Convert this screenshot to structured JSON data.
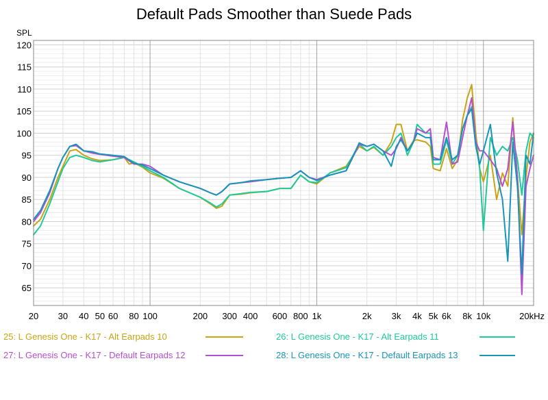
{
  "chart_data": {
    "type": "line",
    "title": "Default Pads Smoother than Suede Pads",
    "ylabel": "SPL",
    "x_scale": "log",
    "xlim": [
      20,
      20000
    ],
    "ylim": [
      61,
      121
    ],
    "y_ticks": [
      65,
      70,
      75,
      80,
      85,
      90,
      95,
      100,
      105,
      110,
      115,
      120
    ],
    "x_ticks": [
      {
        "value": 20,
        "label": "20"
      },
      {
        "value": 30,
        "label": "30"
      },
      {
        "value": 40,
        "label": "40"
      },
      {
        "value": 50,
        "label": "50"
      },
      {
        "value": 60,
        "label": "60"
      },
      {
        "value": 80,
        "label": "80"
      },
      {
        "value": 100,
        "label": "100"
      },
      {
        "value": 200,
        "label": "200"
      },
      {
        "value": 300,
        "label": "300"
      },
      {
        "value": 400,
        "label": "400"
      },
      {
        "value": 600,
        "label": "600"
      },
      {
        "value": 800,
        "label": "800"
      },
      {
        "value": 1000,
        "label": "1k"
      },
      {
        "value": 2000,
        "label": "2k"
      },
      {
        "value": 3000,
        "label": "3k"
      },
      {
        "value": 4000,
        "label": "4k"
      },
      {
        "value": 5000,
        "label": "5k"
      },
      {
        "value": 6000,
        "label": "6k"
      },
      {
        "value": 8000,
        "label": "8k"
      },
      {
        "value": 10000,
        "label": "10k"
      },
      {
        "value": 20000,
        "label": "20kHz"
      }
    ],
    "grid": true,
    "legend_position": "bottom",
    "series": [
      {
        "name": "25: L Genesis One - K17 - Alt Earpads 10",
        "color": "#c8a415",
        "points": [
          [
            20,
            79
          ],
          [
            22,
            80.5
          ],
          [
            25,
            85
          ],
          [
            28,
            90
          ],
          [
            30,
            92.5
          ],
          [
            33,
            96
          ],
          [
            36,
            96.3
          ],
          [
            40,
            95
          ],
          [
            45,
            94.2
          ],
          [
            50,
            93.8
          ],
          [
            60,
            94
          ],
          [
            70,
            94.5
          ],
          [
            75,
            93
          ],
          [
            80,
            93.3
          ],
          [
            90,
            92.3
          ],
          [
            100,
            91
          ],
          [
            120,
            89.8
          ],
          [
            150,
            87.5
          ],
          [
            200,
            85.5
          ],
          [
            230,
            84
          ],
          [
            250,
            83
          ],
          [
            270,
            83.5
          ],
          [
            300,
            86
          ],
          [
            350,
            86.2
          ],
          [
            400,
            86.5
          ],
          [
            500,
            86.8
          ],
          [
            600,
            87.5
          ],
          [
            700,
            87.5
          ],
          [
            800,
            90.5
          ],
          [
            900,
            89
          ],
          [
            1000,
            88.5
          ],
          [
            1200,
            91
          ],
          [
            1500,
            92.5
          ],
          [
            1800,
            97
          ],
          [
            2000,
            96
          ],
          [
            2200,
            96.8
          ],
          [
            2500,
            95
          ],
          [
            2800,
            98
          ],
          [
            3000,
            102
          ],
          [
            3200,
            102
          ],
          [
            3500,
            96
          ],
          [
            3800,
            98.3
          ],
          [
            4000,
            98.5
          ],
          [
            4500,
            98
          ],
          [
            4800,
            97
          ],
          [
            5000,
            92
          ],
          [
            5500,
            91.5
          ],
          [
            6000,
            96.5
          ],
          [
            6500,
            92
          ],
          [
            7000,
            94
          ],
          [
            7500,
            103
          ],
          [
            8000,
            108
          ],
          [
            8500,
            111
          ],
          [
            9000,
            100
          ],
          [
            9500,
            92
          ],
          [
            10000,
            89
          ],
          [
            11000,
            95
          ],
          [
            12000,
            85
          ],
          [
            13000,
            91
          ],
          [
            14000,
            88
          ],
          [
            15000,
            103.5
          ],
          [
            16000,
            90
          ],
          [
            17000,
            77
          ],
          [
            18000,
            90
          ],
          [
            19000,
            98
          ],
          [
            20000,
            100
          ]
        ]
      },
      {
        "name": "26: L Genesis One - K17 - Alt Earpads 11",
        "color": "#1ec99a",
        "points": [
          [
            20,
            77
          ],
          [
            22,
            79
          ],
          [
            25,
            84
          ],
          [
            28,
            89
          ],
          [
            30,
            92
          ],
          [
            33,
            94.5
          ],
          [
            36,
            95
          ],
          [
            40,
            94.5
          ],
          [
            45,
            93.8
          ],
          [
            50,
            93.5
          ],
          [
            60,
            94
          ],
          [
            70,
            94.5
          ],
          [
            80,
            93.5
          ],
          [
            90,
            92.5
          ],
          [
            100,
            91.5
          ],
          [
            120,
            90
          ],
          [
            150,
            87.5
          ],
          [
            200,
            85.5
          ],
          [
            230,
            84.2
          ],
          [
            250,
            83.3
          ],
          [
            270,
            84
          ],
          [
            300,
            86
          ],
          [
            350,
            86.3
          ],
          [
            400,
            86.6
          ],
          [
            500,
            86.8
          ],
          [
            600,
            87.5
          ],
          [
            700,
            87.5
          ],
          [
            800,
            90.5
          ],
          [
            900,
            89
          ],
          [
            1000,
            88.8
          ],
          [
            1200,
            91
          ],
          [
            1500,
            92.2
          ],
          [
            1800,
            97.5
          ],
          [
            2000,
            96
          ],
          [
            2200,
            97
          ],
          [
            2500,
            95
          ],
          [
            2800,
            97
          ],
          [
            3000,
            99
          ],
          [
            3200,
            100
          ],
          [
            3500,
            95
          ],
          [
            3800,
            98
          ],
          [
            4000,
            102
          ],
          [
            4500,
            100
          ],
          [
            4800,
            100
          ],
          [
            5000,
            93
          ],
          [
            5500,
            93
          ],
          [
            6000,
            98.5
          ],
          [
            6500,
            93
          ],
          [
            7000,
            95
          ],
          [
            7500,
            101
          ],
          [
            8000,
            104
          ],
          [
            8500,
            106
          ],
          [
            9000,
            98
          ],
          [
            9500,
            92
          ],
          [
            10000,
            78
          ],
          [
            11000,
            99
          ],
          [
            12000,
            95
          ],
          [
            13000,
            97
          ],
          [
            14000,
            96
          ],
          [
            15000,
            99
          ],
          [
            16000,
            94
          ],
          [
            17000,
            86
          ],
          [
            18000,
            96
          ],
          [
            19000,
            100
          ],
          [
            20000,
            99
          ]
        ]
      },
      {
        "name": "27: L Genesis One - K17 - Default Earpads 12",
        "color": "#b54fd2",
        "points": [
          [
            20,
            80
          ],
          [
            22,
            82
          ],
          [
            25,
            86.5
          ],
          [
            28,
            92
          ],
          [
            30,
            94.5
          ],
          [
            33,
            97
          ],
          [
            36,
            97.2
          ],
          [
            40,
            96
          ],
          [
            45,
            95.5
          ],
          [
            50,
            95.2
          ],
          [
            60,
            94.8
          ],
          [
            70,
            94.5
          ],
          [
            80,
            93
          ],
          [
            90,
            93
          ],
          [
            100,
            92.5
          ],
          [
            120,
            90.5
          ],
          [
            150,
            89
          ],
          [
            200,
            87.5
          ],
          [
            230,
            86.5
          ],
          [
            250,
            86
          ],
          [
            270,
            86.8
          ],
          [
            300,
            88.5
          ],
          [
            350,
            88.8
          ],
          [
            400,
            89
          ],
          [
            500,
            89.5
          ],
          [
            600,
            89.8
          ],
          [
            700,
            90
          ],
          [
            800,
            91.5
          ],
          [
            900,
            90
          ],
          [
            1000,
            89.5
          ],
          [
            1200,
            90.5
          ],
          [
            1500,
            91.5
          ],
          [
            1800,
            97.5
          ],
          [
            2000,
            97
          ],
          [
            2200,
            97.5
          ],
          [
            2500,
            96
          ],
          [
            2800,
            95
          ],
          [
            3000,
            96.5
          ],
          [
            3200,
            99
          ],
          [
            3500,
            96
          ],
          [
            3800,
            98
          ],
          [
            4000,
            101
          ],
          [
            4500,
            100
          ],
          [
            4800,
            101
          ],
          [
            5000,
            94.5
          ],
          [
            5500,
            94
          ],
          [
            6000,
            102.5
          ],
          [
            6500,
            93
          ],
          [
            7000,
            93.5
          ],
          [
            7500,
            99
          ],
          [
            8000,
            104
          ],
          [
            8500,
            108
          ],
          [
            9000,
            98
          ],
          [
            9500,
            96
          ],
          [
            10000,
            96
          ],
          [
            11000,
            94
          ],
          [
            12000,
            92
          ],
          [
            13000,
            88
          ],
          [
            14000,
            92
          ],
          [
            15000,
            102.5
          ],
          [
            16000,
            90
          ],
          [
            17000,
            63.5
          ],
          [
            18000,
            88
          ],
          [
            19000,
            92
          ],
          [
            20000,
            95
          ]
        ]
      },
      {
        "name": "28: L Genesis One - K17 - Default Earpads 13",
        "color": "#1795b8",
        "points": [
          [
            20,
            80.5
          ],
          [
            22,
            82.5
          ],
          [
            25,
            87
          ],
          [
            28,
            92
          ],
          [
            30,
            94.5
          ],
          [
            33,
            97
          ],
          [
            36,
            97.5
          ],
          [
            40,
            96
          ],
          [
            45,
            95.8
          ],
          [
            50,
            95.3
          ],
          [
            60,
            95
          ],
          [
            70,
            94.7
          ],
          [
            80,
            93.2
          ],
          [
            90,
            92.8
          ],
          [
            100,
            92
          ],
          [
            120,
            90.5
          ],
          [
            150,
            89
          ],
          [
            200,
            87.5
          ],
          [
            230,
            86.5
          ],
          [
            250,
            86
          ],
          [
            270,
            86.8
          ],
          [
            300,
            88.5
          ],
          [
            350,
            88.8
          ],
          [
            400,
            89.2
          ],
          [
            500,
            89.5
          ],
          [
            600,
            89.8
          ],
          [
            700,
            90
          ],
          [
            800,
            91.5
          ],
          [
            900,
            90
          ],
          [
            1000,
            89.3
          ],
          [
            1200,
            90.5
          ],
          [
            1500,
            91.5
          ],
          [
            1800,
            97.8
          ],
          [
            2000,
            97
          ],
          [
            2200,
            97.5
          ],
          [
            2500,
            96
          ],
          [
            2800,
            92.5
          ],
          [
            3000,
            97
          ],
          [
            3200,
            98.5
          ],
          [
            3500,
            96
          ],
          [
            3800,
            98
          ],
          [
            4000,
            100
          ],
          [
            4500,
            99
          ],
          [
            4800,
            99
          ],
          [
            5000,
            94
          ],
          [
            5500,
            94
          ],
          [
            6000,
            99
          ],
          [
            6500,
            94
          ],
          [
            7000,
            95
          ],
          [
            7500,
            101
          ],
          [
            8000,
            104
          ],
          [
            8500,
            105.5
          ],
          [
            9000,
            97
          ],
          [
            9500,
            93
          ],
          [
            10000,
            96
          ],
          [
            11000,
            102
          ],
          [
            12000,
            91
          ],
          [
            13000,
            85
          ],
          [
            14000,
            71
          ],
          [
            15000,
            98
          ],
          [
            16000,
            88
          ],
          [
            17000,
            68
          ],
          [
            18000,
            95
          ],
          [
            19000,
            93
          ],
          [
            20000,
            100
          ]
        ]
      }
    ]
  }
}
